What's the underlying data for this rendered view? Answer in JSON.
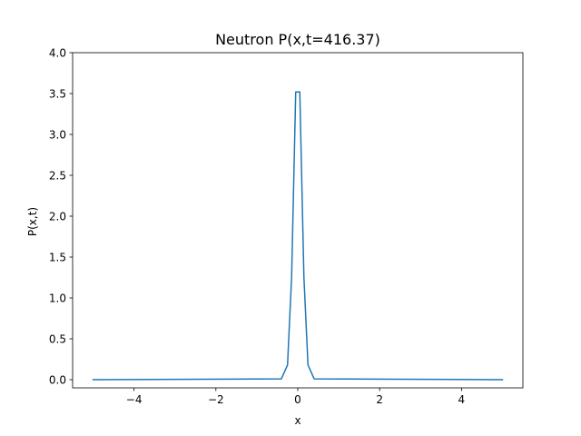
{
  "chart_data": {
    "type": "line",
    "title": "Neutron P(x,t=416.37)",
    "xlabel": "x",
    "ylabel": "P(x,t)",
    "xlim": [
      -5.5,
      5.5
    ],
    "ylim": [
      -0.1,
      4.0
    ],
    "xticks": [
      -4,
      -2,
      0,
      2,
      4
    ],
    "xtick_labels": [
      "−4",
      "−2",
      "0",
      "2",
      "4"
    ],
    "yticks": [
      0.0,
      0.5,
      1.0,
      1.5,
      2.0,
      2.5,
      3.0,
      3.5,
      4.0
    ],
    "ytick_labels": [
      "0.0",
      "0.5",
      "1.0",
      "1.5",
      "2.0",
      "2.5",
      "3.0",
      "3.5",
      "4.0"
    ],
    "grid": false,
    "series": [
      {
        "color": "#1f77b4",
        "x": [
          -5.0,
          -0.4,
          -0.25,
          -0.15,
          -0.05,
          0.05,
          0.15,
          0.25,
          0.4,
          5.0
        ],
        "y": [
          0.0,
          0.01,
          0.18,
          1.26,
          3.52,
          3.52,
          1.26,
          0.18,
          0.01,
          0.0
        ]
      }
    ]
  }
}
